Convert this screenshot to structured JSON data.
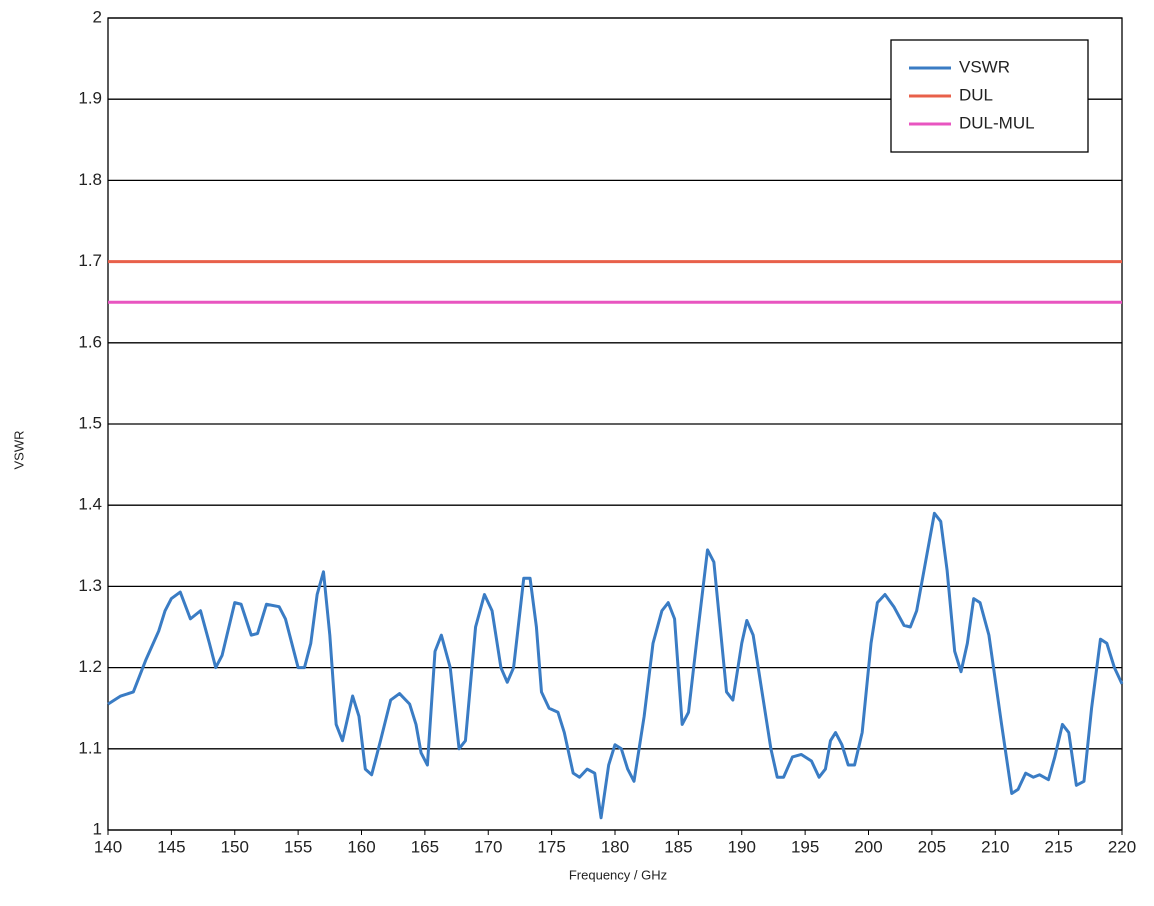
{
  "chart_data": {
    "type": "line",
    "xlabel": "Frequency / GHz",
    "ylabel": "VSWR",
    "xlim": [
      140,
      220
    ],
    "xticks": [
      140,
      145,
      150,
      155,
      160,
      165,
      170,
      175,
      180,
      185,
      190,
      195,
      200,
      205,
      210,
      215,
      220
    ],
    "ylim": [
      1,
      2
    ],
    "yticks": [
      1,
      1.1,
      1.2,
      1.3,
      1.4,
      1.5,
      1.6,
      1.7,
      1.8,
      1.9,
      2
    ],
    "grid": true,
    "legend": "upper right",
    "series": [
      {
        "name": "VSWR",
        "color": "#3a7cc4",
        "x": [
          140,
          141,
          142,
          143,
          144,
          144.5,
          145,
          145.7,
          146.5,
          147.3,
          148,
          148.5,
          149,
          150,
          150.5,
          151.3,
          151.8,
          152.5,
          153.5,
          154,
          155,
          155.5,
          156,
          156.5,
          157,
          157.5,
          158,
          158.5,
          159.3,
          159.8,
          160.3,
          160.8,
          161.5,
          162.3,
          163,
          163.8,
          164.3,
          164.7,
          165.2,
          165.8,
          166.3,
          167,
          167.7,
          168.2,
          169,
          169.7,
          170.3,
          171,
          171.5,
          172,
          172.8,
          173.3,
          173.8,
          174.2,
          174.8,
          175.5,
          176,
          176.7,
          177.2,
          177.8,
          178.4,
          178.9,
          179.5,
          180,
          180.5,
          181,
          181.5,
          182.3,
          183,
          183.7,
          184.2,
          184.7,
          185.3,
          185.8,
          186.5,
          187.3,
          187.8,
          188.3,
          188.8,
          189.3,
          190,
          190.4,
          190.9,
          191.5,
          192.3,
          192.8,
          193.3,
          194,
          194.7,
          195.5,
          196.1,
          196.6,
          197,
          197.4,
          197.9,
          198.4,
          198.9,
          199.5,
          200.2,
          200.7,
          201.3,
          202,
          202.8,
          203.3,
          203.8,
          204.5,
          205.2,
          205.7,
          206.2,
          206.8,
          207.3,
          207.8,
          208.3,
          208.8,
          209.5,
          210.5,
          211.3,
          211.8,
          212.4,
          213,
          213.5,
          214.2,
          214.7,
          215.3,
          215.8,
          216.4,
          217,
          217.6,
          218.3,
          218.8,
          219.4,
          220
        ],
        "values": [
          1.155,
          1.165,
          1.17,
          1.21,
          1.245,
          1.27,
          1.285,
          1.293,
          1.26,
          1.27,
          1.23,
          1.2,
          1.215,
          1.28,
          1.278,
          1.24,
          1.242,
          1.278,
          1.275,
          1.26,
          1.2,
          1.2,
          1.23,
          1.29,
          1.318,
          1.24,
          1.13,
          1.11,
          1.165,
          1.14,
          1.075,
          1.068,
          1.11,
          1.16,
          1.168,
          1.155,
          1.13,
          1.095,
          1.08,
          1.22,
          1.24,
          1.2,
          1.1,
          1.11,
          1.25,
          1.29,
          1.27,
          1.2,
          1.182,
          1.2,
          1.31,
          1.31,
          1.25,
          1.17,
          1.15,
          1.145,
          1.12,
          1.07,
          1.065,
          1.075,
          1.07,
          1.015,
          1.08,
          1.105,
          1.1,
          1.075,
          1.06,
          1.14,
          1.23,
          1.27,
          1.28,
          1.26,
          1.13,
          1.145,
          1.24,
          1.345,
          1.33,
          1.25,
          1.17,
          1.16,
          1.23,
          1.258,
          1.24,
          1.18,
          1.1,
          1.065,
          1.065,
          1.09,
          1.093,
          1.085,
          1.065,
          1.075,
          1.11,
          1.12,
          1.105,
          1.08,
          1.08,
          1.12,
          1.23,
          1.28,
          1.29,
          1.275,
          1.252,
          1.25,
          1.27,
          1.33,
          1.39,
          1.38,
          1.32,
          1.22,
          1.195,
          1.23,
          1.285,
          1.28,
          1.24,
          1.13,
          1.045,
          1.05,
          1.07,
          1.065,
          1.068,
          1.062,
          1.09,
          1.13,
          1.12,
          1.055,
          1.06,
          1.15,
          1.235,
          1.23,
          1.2,
          1.18
        ]
      },
      {
        "name": "DUL",
        "color": "#e8604a",
        "x": [
          140,
          220
        ],
        "values": [
          1.7,
          1.7
        ]
      },
      {
        "name": "DUL-MUL",
        "color": "#e855c0",
        "x": [
          140,
          220
        ],
        "values": [
          1.65,
          1.65
        ]
      }
    ]
  }
}
